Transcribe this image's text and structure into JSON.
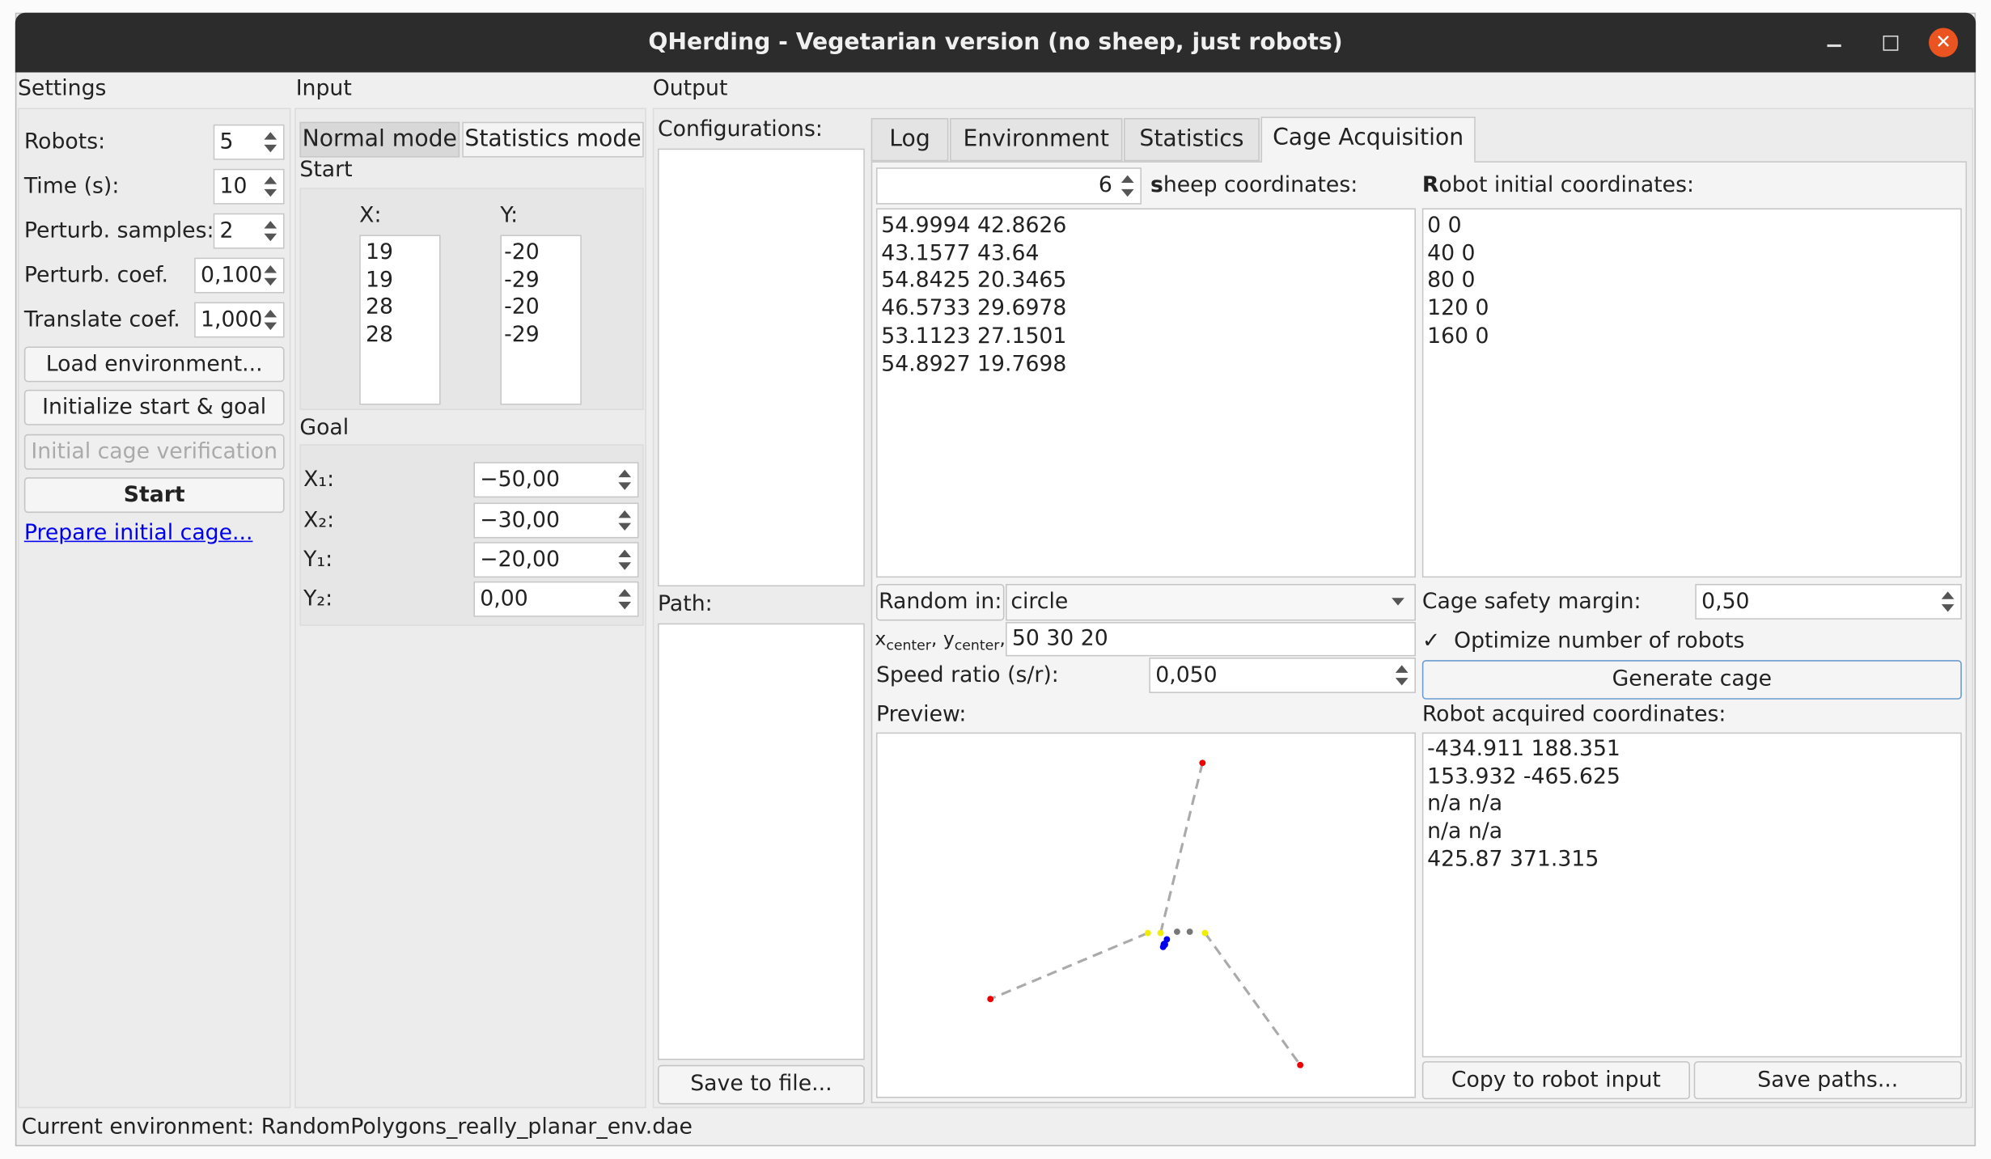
{
  "window": {
    "title": "QHerding - Vegetarian version (no sheep, just robots)"
  },
  "settings": {
    "title": "Settings",
    "fields": [
      {
        "label": "Robots:",
        "value": "5"
      },
      {
        "label": "Time (s):",
        "value": "10"
      },
      {
        "label": "Perturb. samples:",
        "value": "2"
      },
      {
        "label": "Perturb. coef.",
        "value": "0,100"
      },
      {
        "label": "Translate coef.",
        "value": "1,000"
      }
    ],
    "buttons": [
      "Load environment...",
      "Initialize start & goal",
      "Initial cage verification",
      "Start"
    ],
    "link": "Prepare initial cage..."
  },
  "input": {
    "title": "Input",
    "tabs": [
      "Normal mode",
      "Statistics mode"
    ],
    "start": {
      "title": "Start",
      "x_label": "X:",
      "y_label": "Y:",
      "x": [
        "19",
        "19",
        "28",
        "28"
      ],
      "y": [
        "-20",
        "-29",
        "-20",
        "-29"
      ]
    },
    "goal": {
      "title": "Goal",
      "fields": [
        {
          "label": "X₁:",
          "value": "−50,00"
        },
        {
          "label": "X₂:",
          "value": "−30,00"
        },
        {
          "label": "Y₁:",
          "value": "−20,00"
        },
        {
          "label": "Y₂:",
          "value": "0,00"
        }
      ]
    }
  },
  "output": {
    "title": "Output",
    "configurations_label": "Configurations:",
    "path_label": "Path:",
    "save_button": "Save to file...",
    "tabs": [
      "Log",
      "Environment",
      "Statistics",
      "Cage Acquisition"
    ],
    "cage": {
      "sheep_count": "6",
      "sheep_label": "sheep coordinates:",
      "sheep_coords": [
        "54.9994 42.8626",
        "43.1577 43.64",
        "54.8425 20.3465",
        "46.5733 29.6978",
        "53.1123 27.1501",
        "54.8927 19.7698"
      ],
      "robot_label": "Robot initial coordinates:",
      "robot_coords": [
        "0 0",
        "40 0",
        "80 0",
        "120 0",
        "160 0"
      ],
      "random_button": "Random in:",
      "random_shape": "circle",
      "center_label": [
        "x",
        "center",
        ", y",
        "center",
        ", r:"
      ],
      "center_value": "50 30 20",
      "speed_label": "Speed ratio (s/r):",
      "speed_value": "0,050",
      "preview_label": "Preview:",
      "margin_label": "Cage safety margin:",
      "margin_value": "0,50",
      "optimize_label": "Optimize number of robots",
      "generate_button": "Generate cage",
      "acquired_label": "Robot acquired coordinates:",
      "acquired_coords": [
        "-434.911 188.351",
        "153.932 -465.625",
        "n/a n/a",
        "n/a n/a",
        "425.87 371.315"
      ],
      "copy_button": "Copy to robot input",
      "save_paths_button": "Save paths..."
    }
  },
  "status": "Current environment: RandomPolygons_really_planar_env.dae"
}
